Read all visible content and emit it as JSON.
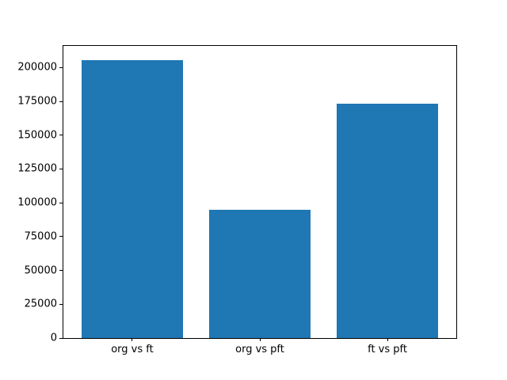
{
  "chart_data": {
    "type": "bar",
    "categories": [
      "org vs ft",
      "org vs pft",
      "ft vs pft"
    ],
    "values": [
      205700,
      95000,
      173500
    ],
    "title": "",
    "xlabel": "",
    "ylabel": "",
    "ylim": [
      0,
      216000
    ],
    "xlim": [
      -0.54,
      2.54
    ],
    "yticks": [
      0,
      25000,
      50000,
      75000,
      100000,
      125000,
      150000,
      175000,
      200000
    ],
    "bar_width": 0.8,
    "bar_color": "#1f77b4",
    "spine_color": "#000000",
    "tick_color": "#000000",
    "background_color": "#ffffff",
    "grid": false,
    "legend": null
  }
}
